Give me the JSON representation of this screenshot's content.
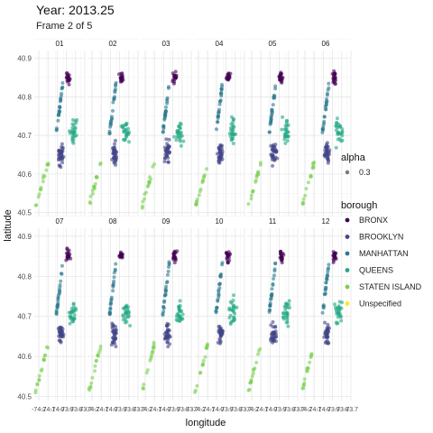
{
  "title": "Year: 2013.25",
  "subtitle": "Frame 2 of 5",
  "colors": {
    "BRONX": "#440154",
    "BROOKLYN": "#414487",
    "MANHATTAN": "#2a788e",
    "QUEENS": "#22a884",
    "STATEN ISLAND": "#7ad151",
    "Unspecified": "#fde725"
  },
  "chart_data": {
    "type": "scatter",
    "facets": [
      "01",
      "02",
      "03",
      "04",
      "05",
      "06",
      "07",
      "08",
      "09",
      "10",
      "11",
      "12"
    ],
    "xlabel": "longitude",
    "ylabel": "latitude",
    "xlim": [
      -74.25,
      -73.7
    ],
    "ylim": [
      40.49,
      40.92
    ],
    "x_ticks": [
      "-74.2",
      "-74.1",
      "-74.0",
      "-73.9",
      "-73.8",
      "-73.7"
    ],
    "y_ticks": [
      40.5,
      40.6,
      40.7,
      40.8,
      40.9
    ],
    "y_tick_labels": [
      "40.5",
      "40.6",
      "40.7",
      "40.8",
      "40.9"
    ],
    "grid": true,
    "legend_position": "right",
    "alpha_legend": {
      "title": "alpha",
      "value": "0.3"
    },
    "color_legend": {
      "title": "borough",
      "entries": [
        "BRONX",
        "BROOKLYN",
        "MANHATTAN",
        "QUEENS",
        "STATEN ISLAND",
        "Unspecified"
      ]
    }
  }
}
